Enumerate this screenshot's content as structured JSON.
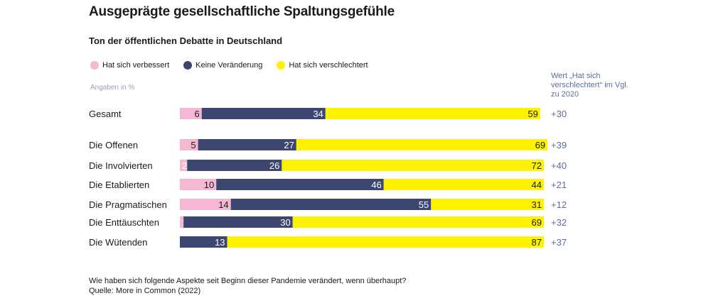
{
  "title": "Ausgeprägte gesellschaftliche Spaltungsgefühle",
  "subtitle": "Ton der öffentlichen Debatte in Deutschland",
  "unit_note": "Angaben in %",
  "change_header": "Wert „Hat sich verschlechtert“ im Vgl. zu 2020",
  "footnote": {
    "question": "Wie haben sich folgende Aspekte seit Beginn dieser Pandemie verändert, wenn überhaupt?",
    "source": "Quelle: More in Common (2022)"
  },
  "colors": {
    "improved": "#f4b8d2",
    "no_change": "#3d4670",
    "worse": "#fff200",
    "change_text": "#5e6d99"
  },
  "chart_data": {
    "type": "bar",
    "orientation": "horizontal",
    "stacked": true,
    "categories": [
      "Gesamt",
      "Die Offenen",
      "Die Involvierten",
      "Die Etablierten",
      "Die Pragmatischen",
      "Die Enttäuschten",
      "Die Wütenden"
    ],
    "series": [
      {
        "name": "Hat sich verbessert",
        "values": [
          6,
          5,
          2,
          10,
          14,
          1,
          0
        ]
      },
      {
        "name": "Keine Veränderung",
        "values": [
          34,
          27,
          26,
          46,
          55,
          30,
          13
        ]
      },
      {
        "name": "Hat sich verschlechtert",
        "values": [
          59,
          69,
          72,
          44,
          31,
          69,
          87
        ]
      }
    ],
    "change_vs_2020": [
      "+30",
      "+39",
      "+40",
      "+21",
      "+12",
      "+32",
      "+37"
    ],
    "xlim": [
      0,
      100
    ],
    "legend": "top-left",
    "grid": false
  }
}
